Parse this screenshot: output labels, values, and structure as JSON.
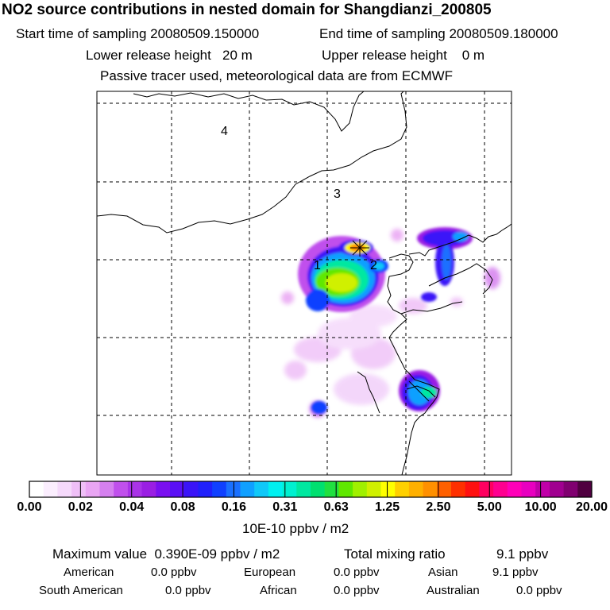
{
  "header": {
    "title": "NO2 source contributions in nested domain for Shangdianzi_200805",
    "start_label": "Start time of sampling 20080509.150000",
    "end_label": "End time of sampling 20080509.180000",
    "lower_label": "Lower release height   20 m",
    "upper_label": "Upper release height    0 m",
    "note": "Passive tracer used, meteorological data are from ECMWF"
  },
  "map": {
    "region_labels": [
      "4",
      "3",
      "1",
      "2"
    ],
    "colors": {
      "coast": "#000000",
      "grid": "#000000",
      "frame": "#000000"
    }
  },
  "colorbar": {
    "colors": [
      "#ffffff",
      "#fbeefe",
      "#f5d9fb",
      "#efbff7",
      "#e9a5f3",
      "#d580ef",
      "#c050ec",
      "#a933e8",
      "#9a1fe3",
      "#7a10f0",
      "#5a10f5",
      "#3a14f8",
      "#2020fb",
      "#1040ff",
      "#1a70ff",
      "#10a0ff",
      "#10c8f8",
      "#00f0f0",
      "#00f0d0",
      "#00e8a0",
      "#00e070",
      "#20e040",
      "#60e800",
      "#a0f000",
      "#d0f000",
      "#ffff00",
      "#ffd000",
      "#ffb000",
      "#ff9000",
      "#ff6000",
      "#ff3000",
      "#ff1010",
      "#ff0060",
      "#ff0090",
      "#ff00b8",
      "#e800c0",
      "#c000a8",
      "#a00090",
      "#800070",
      "#500040"
    ],
    "ticks": [
      "0.00",
      "0.02",
      "0.04",
      "0.08",
      "0.16",
      "0.31",
      "0.63",
      "1.25",
      "2.50",
      "5.00",
      "10.00",
      "20.00"
    ],
    "unit_label": "10E-10 ppbv / m2"
  },
  "stats": {
    "max_label": "Maximum value  0.390E-09 ppbv / m2",
    "total_label": "Total mixing ratio",
    "total_value": "9.1 ppbv",
    "regions": [
      {
        "name": "American",
        "value": "0.0 ppbv"
      },
      {
        "name": "European",
        "value": "0.0 ppbv"
      },
      {
        "name": "Asian",
        "value": "9.1 ppbv"
      },
      {
        "name": "South American",
        "value": "0.0 ppbv"
      },
      {
        "name": "African",
        "value": "0.0 ppbv"
      },
      {
        "name": "Australian",
        "value": "0.0 ppbv"
      }
    ]
  }
}
